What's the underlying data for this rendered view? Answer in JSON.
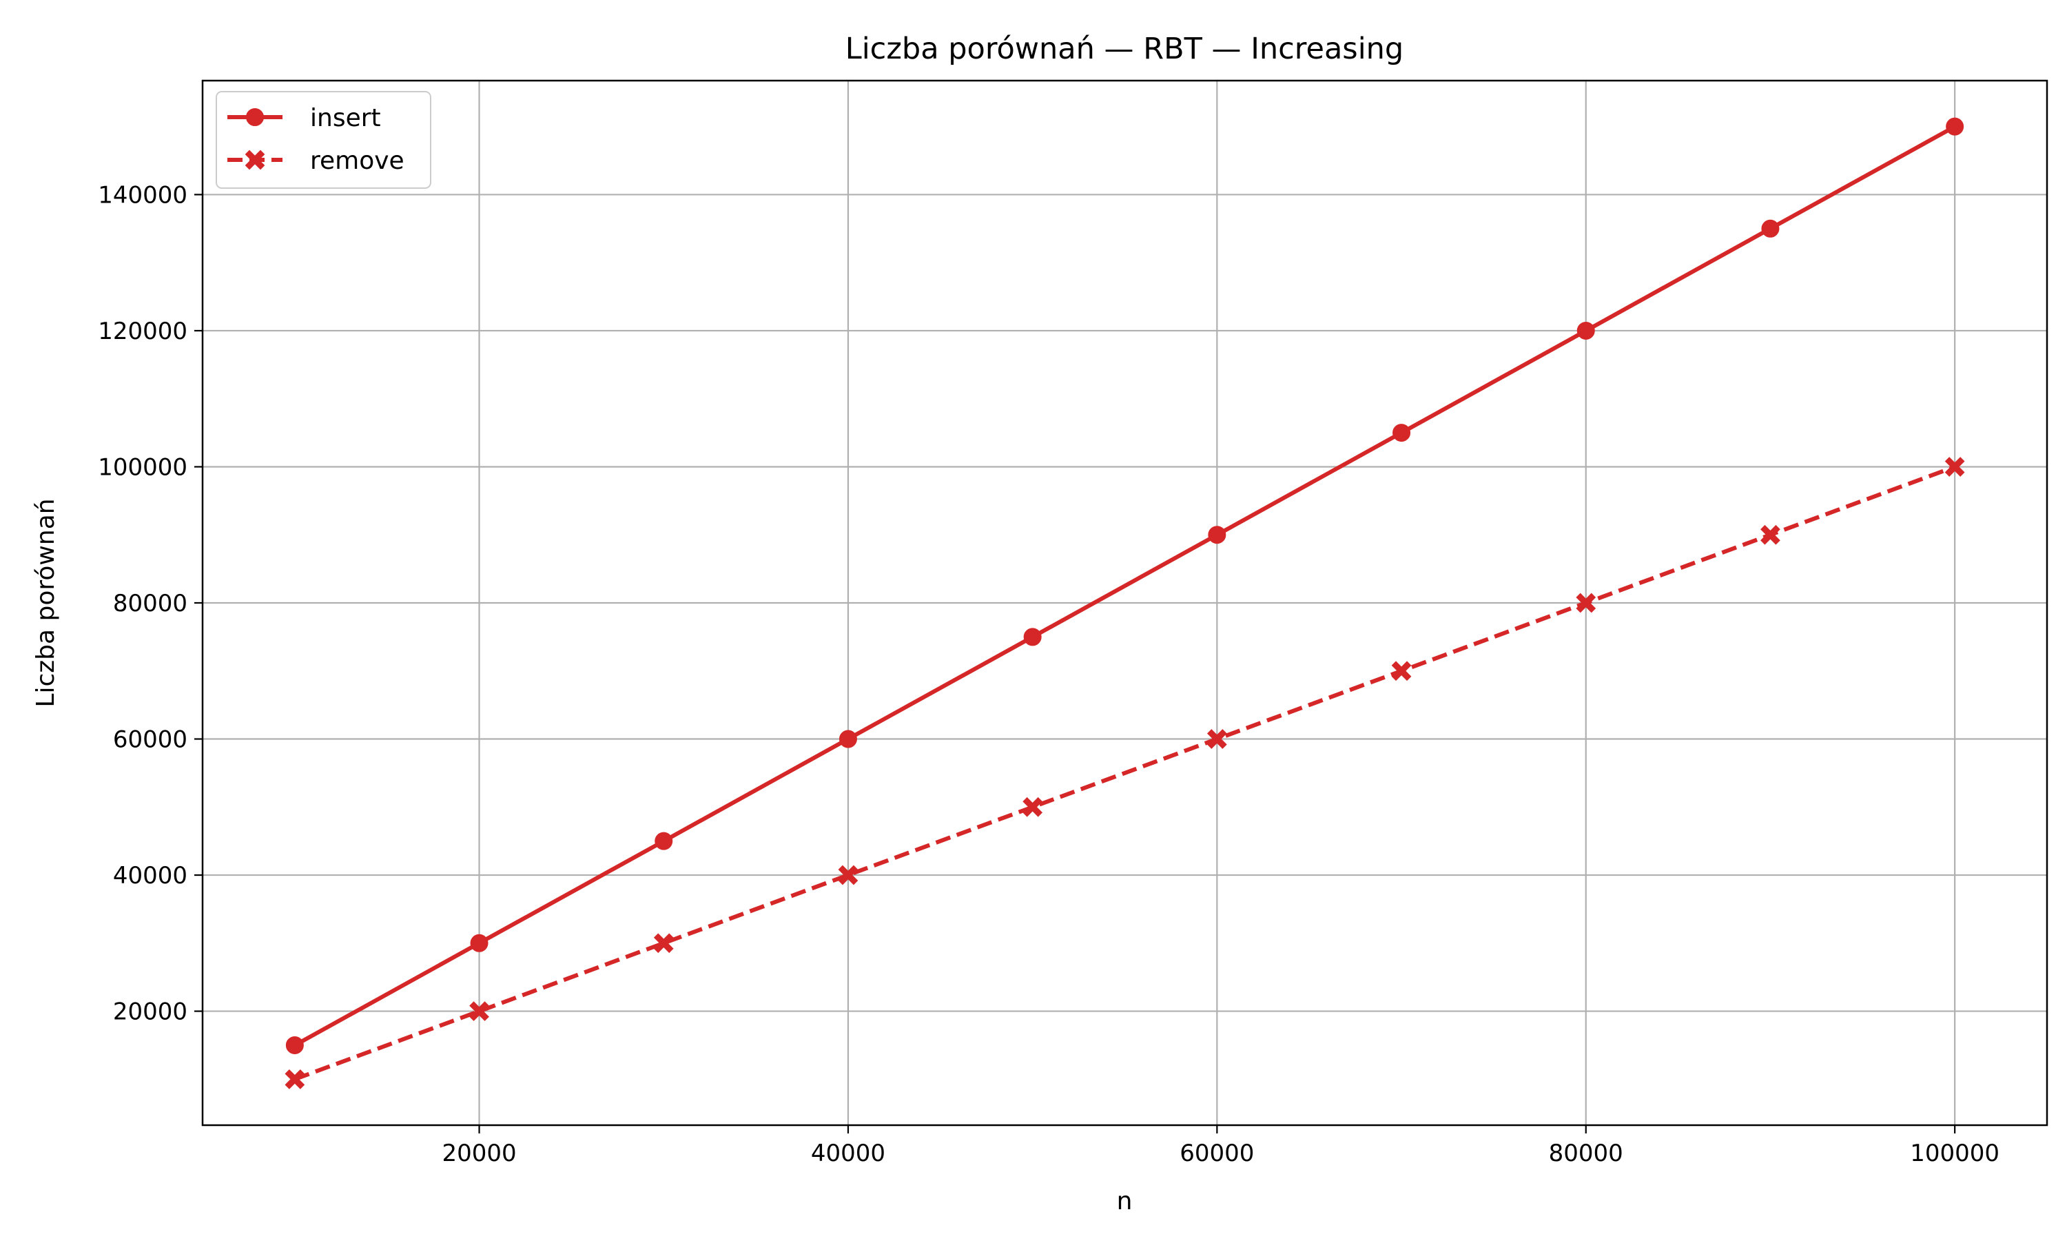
{
  "chart_data": {
    "type": "line",
    "title": "Liczba porównań — RBT — Increasing",
    "xlabel": "n",
    "ylabel": "Liczba porównań",
    "x": [
      10000,
      20000,
      30000,
      40000,
      50000,
      60000,
      70000,
      80000,
      90000,
      100000
    ],
    "xlim": [
      5000,
      105000
    ],
    "ylim": [
      3250,
      156750
    ],
    "xticks": [
      20000,
      40000,
      60000,
      80000,
      100000
    ],
    "yticks": [
      20000,
      40000,
      60000,
      80000,
      100000,
      120000,
      140000
    ],
    "grid": true,
    "legend_position": "top-left",
    "series": [
      {
        "name": "insert",
        "values": [
          15000,
          30000,
          45000,
          60000,
          75000,
          90000,
          105000,
          120000,
          135000,
          150000
        ],
        "color": "#d62728",
        "line_style": "solid",
        "marker": "circle"
      },
      {
        "name": "remove",
        "values": [
          10000,
          20000,
          30000,
          40000,
          50000,
          60000,
          70000,
          80000,
          90000,
          100000
        ],
        "color": "#d62728",
        "line_style": "dashed",
        "marker": "x-filled"
      }
    ]
  }
}
